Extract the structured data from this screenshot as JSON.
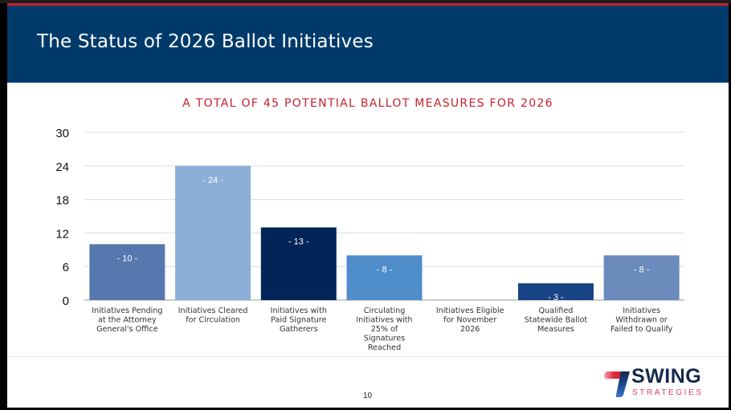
{
  "header": {
    "title": "The Status of 2026 Ballot Initiatives"
  },
  "chart_data": {
    "type": "bar",
    "title": "A TOTAL OF 45 POTENTIAL BALLOT MEASURES FOR 2026",
    "xlabel": "",
    "ylabel": "",
    "ylim": [
      0,
      30
    ],
    "yticks": [
      0,
      6,
      12,
      18,
      24,
      30
    ],
    "grid": true,
    "legend": "none",
    "categories": [
      [
        "Initiatives Pending",
        "at the Attorney",
        "General's Office"
      ],
      [
        "Initiatives Cleared",
        "for Circulation"
      ],
      [
        "Initiatives with",
        "Paid Signature",
        "Gatherers"
      ],
      [
        "Circulating",
        "Initiatives with",
        "25% of",
        "Signatures",
        "Reached"
      ],
      [
        "Initiatives Eligible",
        "for November",
        "2026"
      ],
      [
        "Qualified",
        "Statewide Ballot",
        "Measures"
      ],
      [
        "Initiatives",
        "Withdrawn or",
        "Failed to Qualify"
      ]
    ],
    "values": [
      10,
      24,
      13,
      8,
      0,
      3,
      8
    ],
    "data_labels": [
      "- 10 -",
      "- 24 -",
      "- 13 -",
      "- 8 -",
      "",
      "- 3 -",
      "- 8 -"
    ],
    "bar_colors": [
      "#5579ae",
      "#8cafd8",
      "#022558",
      "#4f8dcb",
      "#4f8dcb",
      "#184486",
      "#6a8bbb"
    ]
  },
  "footer": {
    "page_number": "10",
    "logo_primary": "SWING",
    "logo_secondary": "STRATEGIES"
  },
  "colors": {
    "header_bg": "#003a6b",
    "accent_red": "#c8202f",
    "logo_navy": "#13294b"
  }
}
